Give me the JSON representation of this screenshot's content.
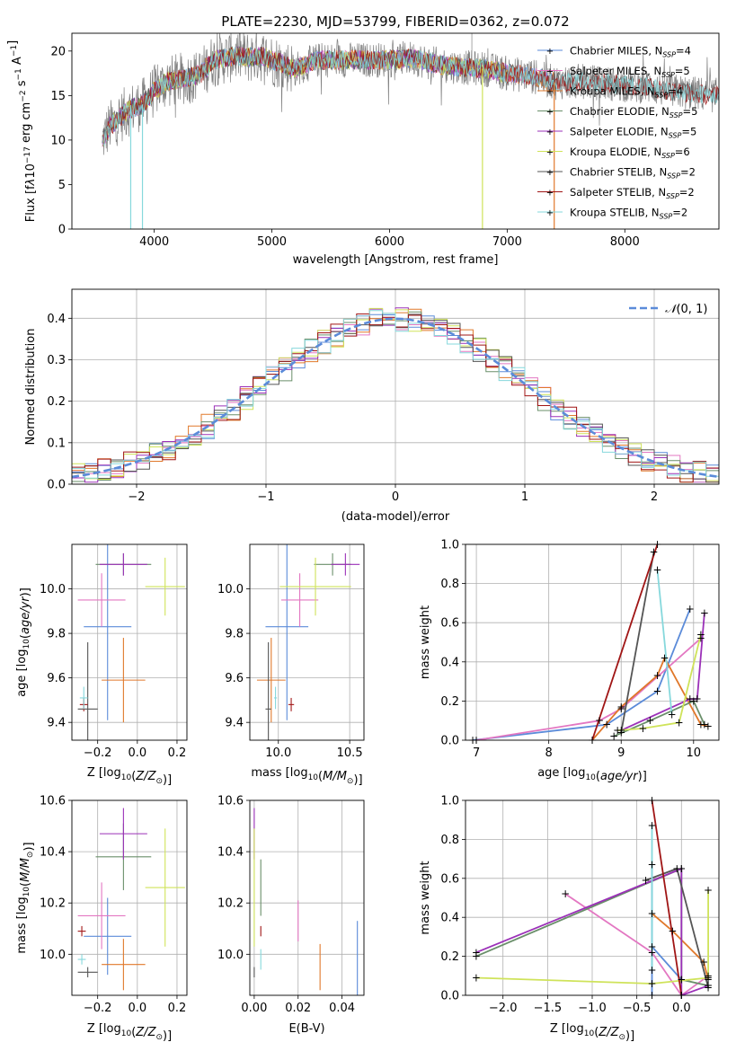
{
  "figure": {
    "title": "PLATE=2230, MJD=53799, FIBERID=0362, z=0.072"
  },
  "colors": {
    "chabrier_miles": "#5b8bd9",
    "salpeter_miles": "#e377c2",
    "kroupa_miles": "#e0782a",
    "chabrier_elodie": "#6a8f6a",
    "salpeter_elodie": "#9b30b8",
    "kroupa_elodie": "#cfe35a",
    "chabrier_stelib": "#555555",
    "salpeter_stelib": "#a01515",
    "kroupa_stelib": "#86d8dc",
    "normal": "#5b8bd9",
    "grid": "#b0b0b0"
  },
  "chart_data": [
    {
      "id": "spectrum",
      "type": "line",
      "xlabel": "wavelength [Angstrom, rest frame]",
      "ylabel": "Flux [f_λ10^-17 erg cm^-2 s^-1 A^-1]",
      "xlim": [
        3300,
        8800
      ],
      "ylim": [
        0,
        22
      ],
      "xticks": [
        4000,
        5000,
        6000,
        7000,
        8000
      ],
      "yticks": [
        0,
        5,
        10,
        15,
        20
      ],
      "grid": false,
      "legend_position": "upper-right",
      "legend": [
        {
          "key": "chabrier_miles",
          "label": "Chabrier MILES, N",
          "sub": "SSP",
          "suffix": "=4"
        },
        {
          "key": "salpeter_miles",
          "label": "Salpeter MILES, N",
          "sub": "SSP",
          "suffix": "=5"
        },
        {
          "key": "kroupa_miles",
          "label": "Kroupa MILES, N",
          "sub": "SSP",
          "suffix": "=4"
        },
        {
          "key": "chabrier_elodie",
          "label": "Chabrier ELODIE, N",
          "sub": "SSP",
          "suffix": "=5"
        },
        {
          "key": "salpeter_elodie",
          "label": "Salpeter ELODIE, N",
          "sub": "SSP",
          "suffix": "=5"
        },
        {
          "key": "kroupa_elodie",
          "label": "Kroupa ELODIE, N",
          "sub": "SSP",
          "suffix": "=6"
        },
        {
          "key": "chabrier_stelib",
          "label": "Chabrier STELIB, N",
          "sub": "SSP",
          "suffix": "=2"
        },
        {
          "key": "salpeter_stelib",
          "label": "Salpeter STELIB, N",
          "sub": "SSP",
          "suffix": "=2"
        },
        {
          "key": "kroupa_stelib",
          "label": "Kroupa STELIB, N",
          "sub": "SSP",
          "suffix": "=2"
        }
      ],
      "continuum": [
        [
          3560,
          10
        ],
        [
          3620,
          11.5
        ],
        [
          3700,
          12.5
        ],
        [
          3800,
          13.5
        ],
        [
          3900,
          14
        ],
        [
          4000,
          15.5
        ],
        [
          4100,
          16.5
        ],
        [
          4200,
          16.8
        ],
        [
          4300,
          17
        ],
        [
          4400,
          17.5
        ],
        [
          4500,
          19
        ],
        [
          4600,
          19.2
        ],
        [
          4700,
          19.5
        ],
        [
          4800,
          19.3
        ],
        [
          4900,
          19.5
        ],
        [
          5000,
          19
        ],
        [
          5200,
          18
        ],
        [
          5400,
          19
        ],
        [
          5600,
          19
        ],
        [
          5800,
          19
        ],
        [
          6000,
          19
        ],
        [
          6200,
          19.2
        ],
        [
          6400,
          18.5
        ],
        [
          6600,
          18.2
        ],
        [
          6800,
          18
        ],
        [
          7000,
          17.5
        ],
        [
          7200,
          17.2
        ],
        [
          7400,
          16.5
        ],
        [
          7600,
          16.6
        ],
        [
          7800,
          16.4
        ],
        [
          8000,
          16.2
        ],
        [
          8200,
          16
        ],
        [
          8400,
          15.5
        ],
        [
          8600,
          15.2
        ],
        [
          8800,
          15
        ]
      ],
      "spikes": [
        [
          3800,
          0
        ],
        [
          3900,
          0
        ],
        [
          6790,
          0
        ],
        [
          7400,
          0
        ],
        [
          6700,
          22
        ]
      ]
    },
    {
      "id": "residuals",
      "type": "histogram",
      "xlabel": "(data-model)/error",
      "ylabel": "Normed distribution",
      "xlim": [
        -2.5,
        2.5
      ],
      "ylim": [
        0,
        0.47
      ],
      "xticks": [
        -2,
        -1,
        0,
        1,
        2
      ],
      "yticks": [
        0.0,
        0.1,
        0.2,
        0.3,
        0.4
      ],
      "grid": true,
      "bin_width": 0.1,
      "legend": [
        {
          "label": "N(0, 1)"
        }
      ],
      "legend_position": "upper-right"
    },
    {
      "id": "age_vs_Z",
      "type": "scatter",
      "xlabel": "Z [log10(Z/Z☉)]",
      "ylabel": "age  [log10(age/yr)]",
      "xlim": [
        -0.33,
        0.25
      ],
      "ylim": [
        9.32,
        10.2
      ],
      "xticks": [
        -0.2,
        0.0,
        0.2
      ],
      "yticks": [
        9.4,
        9.6,
        9.8,
        10.0
      ],
      "grid": true,
      "points": [
        {
          "key": "chabrier_miles",
          "x": -0.15,
          "y": 9.83,
          "xerr": 0.12,
          "yerr": 0.42
        },
        {
          "key": "salpeter_miles",
          "x": -0.18,
          "y": 9.95,
          "xerr": 0.12,
          "yerr": 0.12
        },
        {
          "key": "kroupa_miles",
          "x": -0.07,
          "y": 9.59,
          "xerr": 0.11,
          "yerr": 0.19
        },
        {
          "key": "chabrier_elodie",
          "x": -0.07,
          "y": 10.11,
          "xerr": 0.14,
          "yerr": 0.05
        },
        {
          "key": "salpeter_elodie",
          "x": -0.07,
          "y": 10.11,
          "xerr": 0.12,
          "yerr": 0.05
        },
        {
          "key": "kroupa_elodie",
          "x": 0.14,
          "y": 10.01,
          "xerr": 0.1,
          "yerr": 0.13
        },
        {
          "key": "chabrier_stelib",
          "x": -0.25,
          "y": 9.46,
          "xerr": 0.05,
          "yerr": 0.3
        },
        {
          "key": "salpeter_stelib",
          "x": -0.27,
          "y": 9.48,
          "xerr": 0.02,
          "yerr": 0.03
        },
        {
          "key": "kroupa_stelib",
          "x": -0.27,
          "y": 9.51,
          "xerr": 0.02,
          "yerr": 0.05
        }
      ]
    },
    {
      "id": "age_vs_mass",
      "type": "scatter",
      "xlabel": "mass [log10(M/M☉)]",
      "ylabel": "",
      "xlim": [
        9.8,
        10.6
      ],
      "ylim": [
        9.32,
        10.2
      ],
      "xticks": [
        10.0,
        10.5
      ],
      "yticks": [
        9.4,
        9.6,
        9.8,
        10.0
      ],
      "grid": true,
      "points": [
        {
          "key": "chabrier_miles",
          "x": 10.06,
          "y": 9.83,
          "xerr": 0.15,
          "yerr": 0.42
        },
        {
          "key": "salpeter_miles",
          "x": 10.15,
          "y": 9.95,
          "xerr": 0.13,
          "yerr": 0.12
        },
        {
          "key": "kroupa_miles",
          "x": 9.95,
          "y": 9.59,
          "xerr": 0.1,
          "yerr": 0.19
        },
        {
          "key": "chabrier_elodie",
          "x": 10.38,
          "y": 10.11,
          "xerr": 0.13,
          "yerr": 0.05
        },
        {
          "key": "salpeter_elodie",
          "x": 10.47,
          "y": 10.11,
          "xerr": 0.1,
          "yerr": 0.05
        },
        {
          "key": "kroupa_elodie",
          "x": 10.26,
          "y": 10.01,
          "xerr": 0.25,
          "yerr": 0.13
        },
        {
          "key": "chabrier_stelib",
          "x": 9.93,
          "y": 9.46,
          "xerr": 0.02,
          "yerr": 0.3
        },
        {
          "key": "salpeter_stelib",
          "x": 10.09,
          "y": 9.48,
          "xerr": 0.02,
          "yerr": 0.03
        },
        {
          "key": "kroupa_stelib",
          "x": 9.98,
          "y": 9.51,
          "xerr": 0.01,
          "yerr": 0.05
        }
      ]
    },
    {
      "id": "weight_vs_age",
      "type": "line",
      "xlabel": "age  [log10(age/yr)]",
      "ylabel": "mass weight",
      "xlim": [
        6.85,
        10.35
      ],
      "ylim": [
        0,
        1
      ],
      "xticks": [
        7,
        8,
        9,
        10
      ],
      "yticks": [
        0.0,
        0.2,
        0.4,
        0.6,
        0.8,
        1.0
      ],
      "grid": true,
      "series": [
        {
          "key": "chabrier_miles",
          "points": [
            [
              6.95,
              0.0
            ],
            [
              8.8,
              0.08
            ],
            [
              9.5,
              0.25
            ],
            [
              9.95,
              0.67
            ]
          ]
        },
        {
          "key": "salpeter_miles",
          "points": [
            [
              7.0,
              0.0
            ],
            [
              8.7,
              0.1
            ],
            [
              9.0,
              0.16
            ],
            [
              10.1,
              0.52
            ]
          ]
        },
        {
          "key": "kroupa_miles",
          "points": [
            [
              8.6,
              0.0
            ],
            [
              9.0,
              0.17
            ],
            [
              9.5,
              0.33
            ],
            [
              9.6,
              0.42
            ],
            [
              10.1,
              0.08
            ],
            [
              10.2,
              0.07
            ]
          ]
        },
        {
          "key": "chabrier_elodie",
          "points": [
            [
              8.9,
              0.02
            ],
            [
              9.4,
              0.1
            ],
            [
              10.0,
              0.2
            ],
            [
              10.15,
              0.08
            ]
          ]
        },
        {
          "key": "salpeter_elodie",
          "points": [
            [
              9.0,
              0.05
            ],
            [
              9.95,
              0.21
            ],
            [
              10.05,
              0.21
            ],
            [
              10.15,
              0.65
            ]
          ]
        },
        {
          "key": "kroupa_elodie",
          "points": [
            [
              8.95,
              0.05
            ],
            [
              9.3,
              0.06
            ],
            [
              9.8,
              0.09
            ],
            [
              10.1,
              0.54
            ]
          ]
        },
        {
          "key": "chabrier_stelib",
          "points": [
            [
              9.0,
              0.04
            ],
            [
              9.45,
              0.96
            ]
          ]
        },
        {
          "key": "salpeter_stelib",
          "points": [
            [
              8.6,
              0.0
            ],
            [
              9.5,
              1.0
            ]
          ]
        },
        {
          "key": "kroupa_stelib",
          "points": [
            [
              9.5,
              0.87
            ],
            [
              9.7,
              0.13
            ]
          ]
        }
      ]
    },
    {
      "id": "mass_vs_Z",
      "type": "scatter",
      "xlabel": "Z [log10(Z/Z☉)]",
      "ylabel": "mass [log10(M/M☉)]",
      "xlim": [
        -0.33,
        0.25
      ],
      "ylim": [
        9.84,
        10.6
      ],
      "xticks": [
        -0.2,
        0.0,
        0.2
      ],
      "yticks": [
        10.0,
        10.2,
        10.4,
        10.6
      ],
      "grid": true,
      "points": [
        {
          "key": "chabrier_miles",
          "x": -0.15,
          "y": 10.07,
          "xerr": 0.12,
          "yerr": 0.15
        },
        {
          "key": "salpeter_miles",
          "x": -0.18,
          "y": 10.15,
          "xerr": 0.12,
          "yerr": 0.13
        },
        {
          "key": "kroupa_miles",
          "x": -0.07,
          "y": 9.96,
          "xerr": 0.11,
          "yerr": 0.1
        },
        {
          "key": "chabrier_elodie",
          "x": -0.07,
          "y": 10.38,
          "xerr": 0.14,
          "yerr": 0.13
        },
        {
          "key": "salpeter_elodie",
          "x": -0.07,
          "y": 10.47,
          "xerr": 0.12,
          "yerr": 0.1
        },
        {
          "key": "kroupa_elodie",
          "x": 0.14,
          "y": 10.26,
          "xerr": 0.1,
          "yerr": 0.23
        },
        {
          "key": "chabrier_stelib",
          "x": -0.25,
          "y": 9.93,
          "xerr": 0.05,
          "yerr": 0.02
        },
        {
          "key": "salpeter_stelib",
          "x": -0.28,
          "y": 10.09,
          "xerr": 0.02,
          "yerr": 0.02
        },
        {
          "key": "kroupa_stelib",
          "x": -0.28,
          "y": 9.98,
          "xerr": 0.02,
          "yerr": 0.02
        }
      ]
    },
    {
      "id": "mass_vs_ebv",
      "type": "scatter",
      "xlabel": "E(B-V)",
      "ylabel": "",
      "xlim": [
        -0.002,
        0.05
      ],
      "ylim": [
        9.84,
        10.6
      ],
      "xticks": [
        0.0,
        0.02,
        0.04
      ],
      "yticks": [
        10.0,
        10.2,
        10.4,
        10.6
      ],
      "grid": true,
      "points": [
        {
          "key": "chabrier_miles",
          "x": 0.047,
          "y": 9.98,
          "xerr": 0.0,
          "yerr": 0.15
        },
        {
          "key": "salpeter_miles",
          "x": 0.02,
          "y": 10.13,
          "xerr": 0.0,
          "yerr": 0.08
        },
        {
          "key": "kroupa_miles",
          "x": 0.03,
          "y": 9.95,
          "xerr": 0.0,
          "yerr": 0.09
        },
        {
          "key": "chabrier_elodie",
          "x": 0.003,
          "y": 10.26,
          "xerr": 0.0,
          "yerr": 0.11
        },
        {
          "key": "salpeter_elodie",
          "x": 0.0,
          "y": 10.47,
          "xerr": 0.0,
          "yerr": 0.1
        },
        {
          "key": "kroupa_elodie",
          "x": 0.0,
          "y": 10.26,
          "xerr": 0.0,
          "yerr": 0.23
        },
        {
          "key": "chabrier_stelib",
          "x": 0.0,
          "y": 9.93,
          "xerr": 0.0,
          "yerr": 0.02
        },
        {
          "key": "salpeter_stelib",
          "x": 0.003,
          "y": 10.09,
          "xerr": 0.0,
          "yerr": 0.02
        },
        {
          "key": "kroupa_stelib",
          "x": 0.003,
          "y": 9.98,
          "xerr": 0.0,
          "yerr": 0.04
        }
      ]
    },
    {
      "id": "weight_vs_Z",
      "type": "line",
      "xlabel": "Z [log10(Z/Z☉)]",
      "ylabel": "mass weight",
      "xlim": [
        -2.42,
        0.42
      ],
      "ylim": [
        0,
        1
      ],
      "xticks": [
        -2.0,
        -1.5,
        -1.0,
        -0.5,
        0.0
      ],
      "yticks": [
        0.0,
        0.2,
        0.4,
        0.6,
        0.8,
        1.0
      ],
      "grid": true,
      "series": [
        {
          "key": "chabrier_miles",
          "points": [
            [
              -0.33,
              0.0
            ],
            [
              -0.33,
              0.67
            ],
            [
              -0.33,
              0.25
            ],
            [
              0.0,
              0.08
            ]
          ]
        },
        {
          "key": "salpeter_miles",
          "points": [
            [
              -1.3,
              0.52
            ],
            [
              -0.33,
              0.22
            ],
            [
              0.0,
              0.0
            ],
            [
              0.3,
              0.1
            ]
          ]
        },
        {
          "key": "kroupa_miles",
          "points": [
            [
              -0.33,
              0.42
            ],
            [
              -0.1,
              0.33
            ],
            [
              0.25,
              0.17
            ],
            [
              0.3,
              0.08
            ]
          ]
        },
        {
          "key": "chabrier_elodie",
          "points": [
            [
              -2.3,
              0.2
            ],
            [
              0.0,
              0.65
            ],
            [
              0.0,
              0.08
            ],
            [
              0.3,
              0.05
            ]
          ]
        },
        {
          "key": "salpeter_elodie",
          "points": [
            [
              -2.3,
              0.22
            ],
            [
              0.0,
              0.65
            ],
            [
              0.0,
              0.0
            ],
            [
              0.3,
              0.05
            ]
          ]
        },
        {
          "key": "kroupa_elodie",
          "points": [
            [
              -2.3,
              0.09
            ],
            [
              -0.33,
              0.06
            ],
            [
              0.3,
              0.09
            ],
            [
              0.3,
              0.54
            ]
          ]
        },
        {
          "key": "chabrier_stelib",
          "points": [
            [
              -0.4,
              0.59
            ],
            [
              -0.05,
              0.65
            ],
            [
              0.3,
              0.04
            ]
          ]
        },
        {
          "key": "salpeter_stelib",
          "points": [
            [
              -0.33,
              1.0
            ],
            [
              0.0,
              0.0
            ]
          ]
        },
        {
          "key": "kroupa_stelib",
          "points": [
            [
              -0.33,
              0.87
            ],
            [
              -0.33,
              0.13
            ]
          ]
        }
      ]
    }
  ]
}
